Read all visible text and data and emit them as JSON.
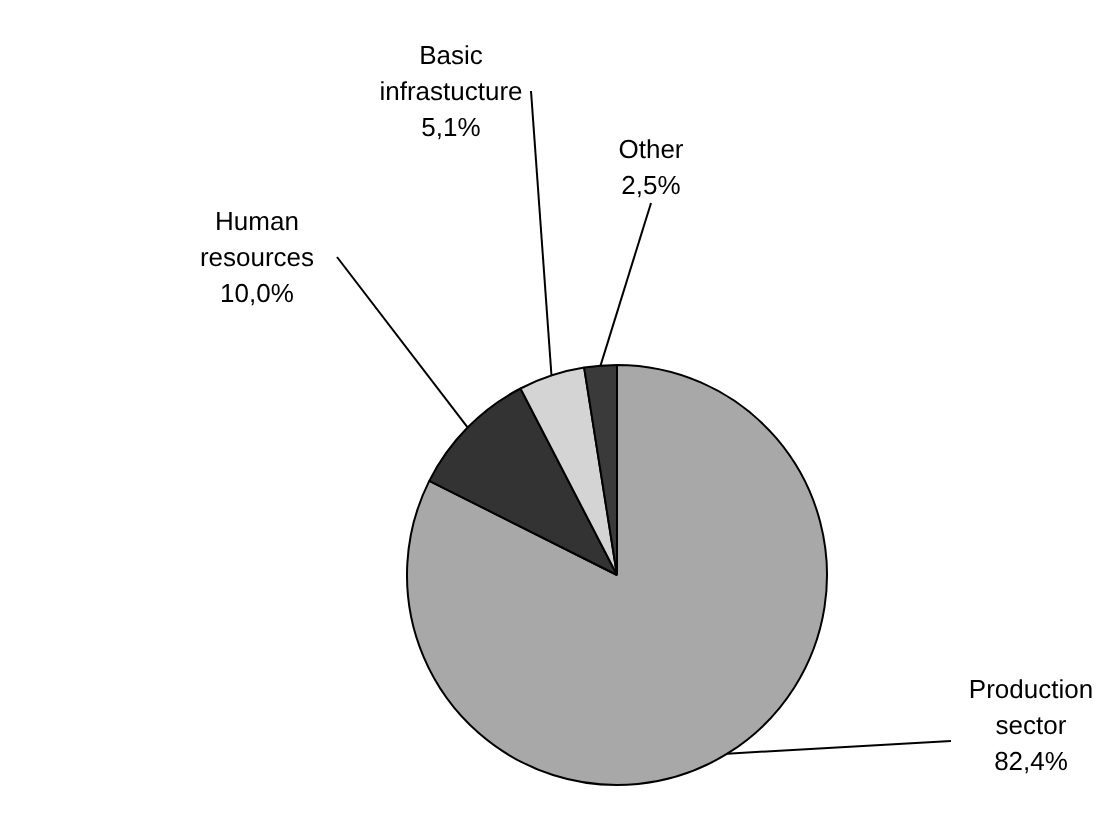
{
  "chart_data": {
    "type": "pie",
    "categories": [
      "Production sector",
      "Human resources",
      "Basic infrastucture",
      "Other"
    ],
    "values": [
      82.4,
      10.0,
      5.1,
      2.5
    ],
    "colors": [
      "#a8a8a8",
      "#333333",
      "#d4d4d4",
      "#3a3a3a"
    ],
    "value_labels": [
      "82,4%",
      "10,0%",
      "5,1%",
      "2,5%"
    ]
  }
}
